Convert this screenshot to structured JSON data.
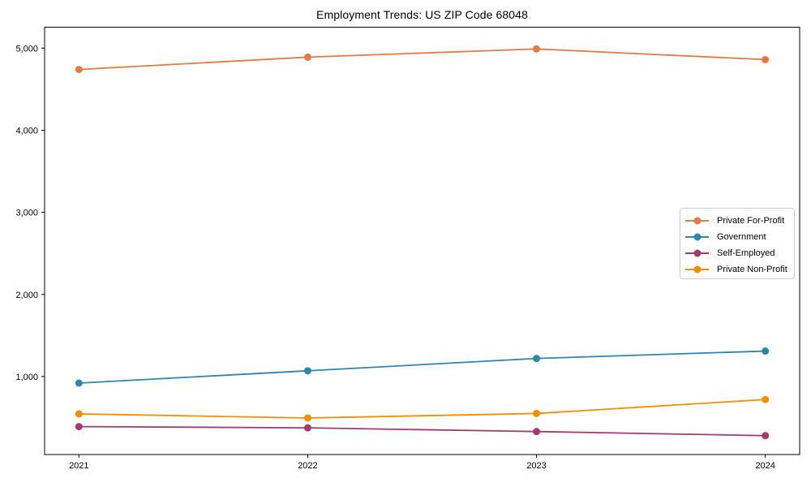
{
  "chart_data": {
    "type": "line",
    "title": "Employment Trends: US ZIP Code 68048",
    "x": [
      2021,
      2022,
      2023,
      2024
    ],
    "x_labels": [
      "2021",
      "2022",
      "2023",
      "2024"
    ],
    "series": [
      {
        "name": "Private For-Profit",
        "color": "#E57A44",
        "values": [
          4740,
          4890,
          4990,
          4860
        ]
      },
      {
        "name": "Government",
        "color": "#2E86AB",
        "values": [
          920,
          1070,
          1220,
          1310
        ]
      },
      {
        "name": "Self-Employed",
        "color": "#A23B72",
        "values": [
          390,
          375,
          330,
          280
        ]
      },
      {
        "name": "Private Non-Profit",
        "color": "#F18F01",
        "values": [
          545,
          495,
          550,
          720
        ]
      }
    ],
    "yticks": [
      1000,
      2000,
      3000,
      4000,
      5000
    ],
    "ytick_labels": [
      "1,000",
      "2,000",
      "3,000",
      "4,000",
      "5,000"
    ],
    "xlim": [
      2020.85,
      2024.15
    ],
    "ylim": [
      50,
      5255
    ],
    "xlabel": "",
    "ylabel": "",
    "grid": false,
    "legend_position": "center right",
    "marker": "circle",
    "axes_box": true
  }
}
